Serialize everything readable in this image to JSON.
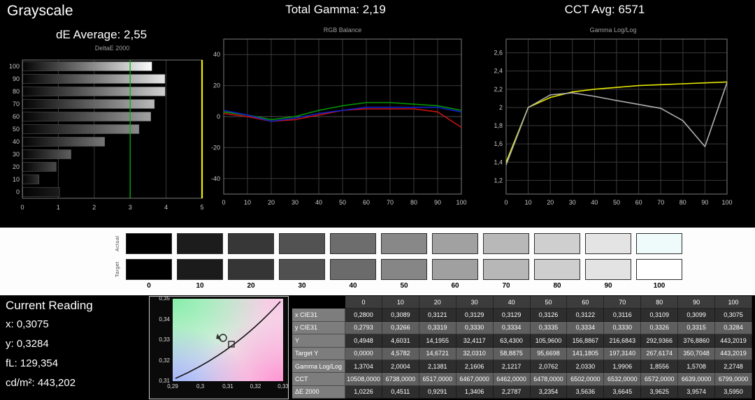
{
  "header": {
    "grayscale_title": "Grayscale",
    "de_average": "dE Average: 2,55",
    "total_gamma": "Total Gamma: 2,19",
    "cct_avg": "CCT Avg: 6571"
  },
  "chart_data": [
    {
      "id": "deltae",
      "type": "bar",
      "title": "DeltaE 2000",
      "orientation": "horizontal",
      "categories": [
        100,
        90,
        80,
        70,
        60,
        50,
        40,
        30,
        20,
        10,
        0
      ],
      "values": [
        3.595,
        3.9574,
        3.9625,
        3.6645,
        3.5636,
        3.2354,
        2.2787,
        1.3406,
        0.9291,
        0.4511,
        1.0226
      ],
      "xlim": [
        0,
        5
      ],
      "x_ticks": [
        "0",
        "1",
        "2",
        "3",
        "4",
        "5"
      ],
      "target_line_x": 3,
      "target_line_color": "#00b400",
      "limit_line_color": "#f2f200"
    },
    {
      "id": "rgb_balance",
      "type": "line",
      "title": "RGB Balance",
      "x": [
        0,
        10,
        20,
        30,
        40,
        50,
        60,
        70,
        80,
        90,
        100
      ],
      "ylim": [
        -50,
        50
      ],
      "y_ticks": [
        -40,
        -20,
        0,
        20,
        40
      ],
      "series": [
        {
          "name": "red-balance",
          "color": "#cc1111",
          "values": [
            2,
            0,
            -3,
            -2,
            1,
            4,
            5,
            5,
            5,
            3,
            -7
          ]
        },
        {
          "name": "green-balance",
          "color": "#009900",
          "values": [
            3,
            1,
            -2,
            0,
            4,
            7,
            9,
            9,
            8,
            7,
            4
          ]
        },
        {
          "name": "blue-balance",
          "color": "#1122cc",
          "values": [
            4,
            1,
            -3,
            -1,
            2,
            4,
            6,
            6,
            6,
            6,
            3
          ]
        }
      ]
    },
    {
      "id": "gamma_loglog",
      "type": "line",
      "title": "Gamma Log/Log",
      "x": [
        0,
        10,
        20,
        30,
        40,
        50,
        60,
        70,
        80,
        90,
        100
      ],
      "ylim": [
        1.05,
        2.75
      ],
      "y_ticks": [
        1.2,
        1.4,
        1.6,
        1.8,
        2,
        2.2,
        2.4,
        2.6
      ],
      "series": [
        {
          "name": "gamma-target",
          "color": "#e8e800",
          "values": [
            1.4,
            2.0,
            2.11,
            2.17,
            2.2,
            2.22,
            2.24,
            2.25,
            2.26,
            2.27,
            2.28
          ]
        },
        {
          "name": "gamma-measured",
          "color": "#b0b0b0",
          "values": [
            1.3704,
            2.0004,
            2.1381,
            2.1606,
            2.1217,
            2.0762,
            2.033,
            1.9906,
            1.8556,
            1.5708,
            2.2748
          ]
        }
      ]
    }
  ],
  "swatches": {
    "row_labels": [
      "Actual",
      "Target"
    ],
    "levels": [
      "0",
      "10",
      "20",
      "30",
      "40",
      "50",
      "60",
      "70",
      "80",
      "90",
      "100"
    ],
    "actual_colors": [
      "#000000",
      "#1c1c1c",
      "#373737",
      "#525252",
      "#6d6d6d",
      "#888888",
      "#a1a1a1",
      "#b8b8b8",
      "#cfcfcf",
      "#e4e4e4",
      "#effbfb"
    ],
    "target_colors": [
      "#000000",
      "#1b1b1b",
      "#353535",
      "#505050",
      "#6b6b6b",
      "#868686",
      "#a0a0a0",
      "#b7b7b7",
      "#cecece",
      "#e3e3e3",
      "#ffffff"
    ]
  },
  "current_reading": {
    "title": "Current Reading",
    "x": "x: 0,3075",
    "y": "y: 0,3284",
    "fl": "fL: 129,354",
    "cdm2": "cd/m²: 443,202"
  },
  "cie_chart": {
    "y_ticks": [
      "0,35",
      "0,34",
      "0,33",
      "0,32",
      "0,31"
    ],
    "x_ticks": [
      "0,29",
      "0,3",
      "0,31",
      "0,32",
      "0,33"
    ],
    "markers": [
      "measured-point",
      "target-point"
    ]
  },
  "table": {
    "columns": [
      "0",
      "10",
      "20",
      "30",
      "40",
      "50",
      "60",
      "70",
      "80",
      "90",
      "100"
    ],
    "rows": [
      {
        "label": "x CIE31",
        "values": [
          "0,2800",
          "0,3089",
          "0,3121",
          "0,3129",
          "0,3129",
          "0,3126",
          "0,3122",
          "0,3116",
          "0,3109",
          "0,3099",
          "0,3075"
        ]
      },
      {
        "label": "y CIE31",
        "values": [
          "0,2793",
          "0,3266",
          "0,3319",
          "0,3330",
          "0,3334",
          "0,3335",
          "0,3334",
          "0,3330",
          "0,3326",
          "0,3315",
          "0,3284"
        ]
      },
      {
        "label": "Y",
        "values": [
          "0,4948",
          "4,6031",
          "14,1955",
          "32,4117",
          "63,4300",
          "105,9600",
          "156,8867",
          "216,6843",
          "292,9366",
          "376,8860",
          "443,2019"
        ]
      },
      {
        "label": "Target Y",
        "values": [
          "0,0000",
          "4,5782",
          "14,6721",
          "32,0310",
          "58,8875",
          "95,6698",
          "141,1805",
          "197,3140",
          "267,6174",
          "350,7048",
          "443,2019"
        ]
      },
      {
        "label": "Gamma Log/Log",
        "values": [
          "1,3704",
          "2,0004",
          "2,1381",
          "2,1606",
          "2,1217",
          "2,0762",
          "2,0330",
          "1,9906",
          "1,8556",
          "1,5708",
          "2,2748"
        ]
      },
      {
        "label": "CCT",
        "values": [
          "10508,0000",
          "6738,0000",
          "6517,0000",
          "6467,0000",
          "6462,0000",
          "6478,0000",
          "6502,0000",
          "6532,0000",
          "6572,0000",
          "6639,0000",
          "6799,0000"
        ]
      },
      {
        "label": "ΔE 2000",
        "values": [
          "1,0226",
          "0,4511",
          "0,9291",
          "1,3406",
          "2,2787",
          "3,2354",
          "3,5636",
          "3,6645",
          "3,9625",
          "3,9574",
          "3,5950"
        ]
      }
    ]
  }
}
